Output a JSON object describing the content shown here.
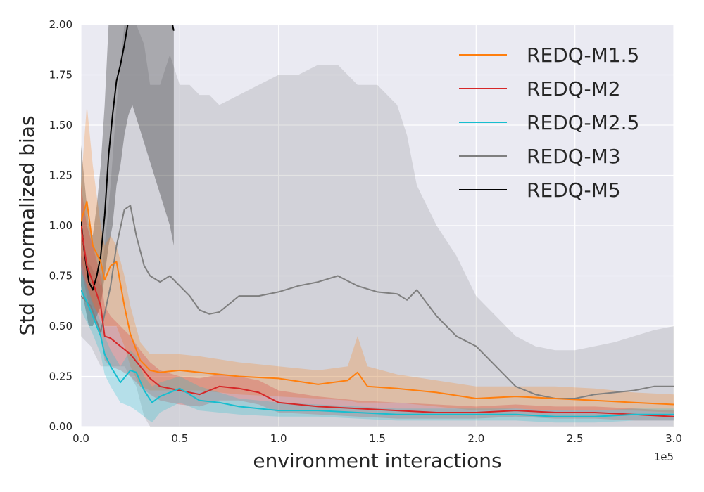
{
  "chart_data": {
    "type": "line",
    "title": "",
    "xlabel": "environment interactions",
    "ylabel": "Std of normalized bias",
    "x_offset_label": "1e5",
    "xlim": [
      0,
      3.0
    ],
    "ylim": [
      0,
      2.0
    ],
    "xticks": [
      "0.0",
      "0.5",
      "1.0",
      "1.5",
      "2.0",
      "2.5",
      "3.0"
    ],
    "yticks": [
      "0.00",
      "0.25",
      "0.50",
      "0.75",
      "1.00",
      "1.25",
      "1.50",
      "1.75",
      "2.00"
    ],
    "grid": true,
    "legend_position": "top-right",
    "series": [
      {
        "name": "REDQ-M1.5",
        "color": "#ff7f0e",
        "x": [
          0,
          0.03,
          0.06,
          0.1,
          0.12,
          0.15,
          0.18,
          0.22,
          0.25,
          0.3,
          0.35,
          0.4,
          0.5,
          0.6,
          0.8,
          1.0,
          1.2,
          1.35,
          1.4,
          1.45,
          1.6,
          1.8,
          2.0,
          2.2,
          2.4,
          2.6,
          2.8,
          3.0
        ],
        "values": [
          1.02,
          1.12,
          0.9,
          0.82,
          0.73,
          0.8,
          0.82,
          0.6,
          0.46,
          0.33,
          0.28,
          0.27,
          0.28,
          0.27,
          0.25,
          0.24,
          0.21,
          0.23,
          0.27,
          0.2,
          0.19,
          0.17,
          0.14,
          0.15,
          0.14,
          0.13,
          0.12,
          0.11
        ],
        "band_upper": [
          1.2,
          1.6,
          1.3,
          1.0,
          0.9,
          0.95,
          0.9,
          0.75,
          0.6,
          0.42,
          0.36,
          0.36,
          0.36,
          0.35,
          0.32,
          0.3,
          0.28,
          0.3,
          0.45,
          0.3,
          0.26,
          0.23,
          0.2,
          0.2,
          0.2,
          0.19,
          0.17,
          0.16
        ],
        "band_lower": [
          0.85,
          0.7,
          0.6,
          0.55,
          0.5,
          0.5,
          0.5,
          0.4,
          0.3,
          0.2,
          0.18,
          0.18,
          0.18,
          0.18,
          0.16,
          0.15,
          0.14,
          0.13,
          0.12,
          0.12,
          0.12,
          0.1,
          0.08,
          0.09,
          0.08,
          0.08,
          0.08,
          0.07
        ]
      },
      {
        "name": "REDQ-M2",
        "color": "#d62728",
        "x": [
          0,
          0.03,
          0.06,
          0.1,
          0.12,
          0.15,
          0.2,
          0.25,
          0.3,
          0.35,
          0.4,
          0.5,
          0.6,
          0.7,
          0.8,
          0.9,
          1.0,
          1.2,
          1.4,
          1.6,
          1.8,
          2.0,
          2.2,
          2.4,
          2.6,
          2.8,
          3.0
        ],
        "values": [
          1.0,
          0.8,
          0.72,
          0.6,
          0.45,
          0.44,
          0.4,
          0.36,
          0.3,
          0.24,
          0.2,
          0.18,
          0.16,
          0.2,
          0.19,
          0.17,
          0.12,
          0.1,
          0.09,
          0.08,
          0.07,
          0.07,
          0.08,
          0.07,
          0.07,
          0.06,
          0.05
        ],
        "band_upper": [
          1.2,
          1.0,
          0.9,
          0.75,
          0.6,
          0.55,
          0.5,
          0.45,
          0.38,
          0.32,
          0.28,
          0.25,
          0.24,
          0.26,
          0.25,
          0.23,
          0.18,
          0.15,
          0.13,
          0.12,
          0.11,
          0.1,
          0.11,
          0.1,
          0.1,
          0.09,
          0.08
        ],
        "band_lower": [
          0.8,
          0.65,
          0.55,
          0.45,
          0.33,
          0.3,
          0.28,
          0.25,
          0.2,
          0.16,
          0.13,
          0.11,
          0.1,
          0.13,
          0.13,
          0.11,
          0.07,
          0.06,
          0.05,
          0.04,
          0.04,
          0.04,
          0.05,
          0.04,
          0.04,
          0.03,
          0.03
        ]
      },
      {
        "name": "REDQ-M2.5",
        "color": "#17becf",
        "x": [
          0,
          0.03,
          0.06,
          0.1,
          0.12,
          0.15,
          0.2,
          0.25,
          0.28,
          0.32,
          0.36,
          0.4,
          0.5,
          0.6,
          0.7,
          0.8,
          1.0,
          1.2,
          1.4,
          1.6,
          1.8,
          2.0,
          2.2,
          2.4,
          2.6,
          2.8,
          3.0
        ],
        "values": [
          0.68,
          0.62,
          0.55,
          0.45,
          0.36,
          0.3,
          0.22,
          0.28,
          0.27,
          0.18,
          0.12,
          0.15,
          0.19,
          0.13,
          0.12,
          0.1,
          0.08,
          0.08,
          0.07,
          0.06,
          0.06,
          0.06,
          0.06,
          0.05,
          0.05,
          0.06,
          0.06
        ],
        "band_upper": [
          0.78,
          0.7,
          0.62,
          0.52,
          0.45,
          0.38,
          0.3,
          0.38,
          0.35,
          0.25,
          0.2,
          0.22,
          0.25,
          0.2,
          0.17,
          0.14,
          0.12,
          0.11,
          0.1,
          0.09,
          0.09,
          0.09,
          0.09,
          0.08,
          0.08,
          0.09,
          0.09
        ],
        "band_lower": [
          0.58,
          0.52,
          0.46,
          0.36,
          0.26,
          0.2,
          0.12,
          0.1,
          0.08,
          0.05,
          0.02,
          0.07,
          0.12,
          0.08,
          0.07,
          0.06,
          0.05,
          0.05,
          0.04,
          0.03,
          0.03,
          0.03,
          0.03,
          0.02,
          0.02,
          0.03,
          0.03
        ]
      },
      {
        "name": "REDQ-M3",
        "color": "#7f7f7f",
        "x": [
          0,
          0.05,
          0.1,
          0.15,
          0.18,
          0.22,
          0.25,
          0.28,
          0.32,
          0.35,
          0.4,
          0.45,
          0.5,
          0.55,
          0.6,
          0.65,
          0.7,
          0.8,
          0.9,
          1.0,
          1.1,
          1.2,
          1.3,
          1.4,
          1.5,
          1.6,
          1.65,
          1.7,
          1.8,
          1.9,
          2.0,
          2.1,
          2.2,
          2.3,
          2.4,
          2.5,
          2.6,
          2.7,
          2.8,
          2.9,
          3.0
        ],
        "values": [
          0.65,
          0.6,
          0.47,
          0.7,
          0.9,
          1.08,
          1.1,
          0.95,
          0.8,
          0.75,
          0.72,
          0.75,
          0.7,
          0.65,
          0.58,
          0.56,
          0.57,
          0.65,
          0.65,
          0.67,
          0.7,
          0.72,
          0.75,
          0.7,
          0.67,
          0.66,
          0.63,
          0.68,
          0.55,
          0.45,
          0.4,
          0.3,
          0.2,
          0.16,
          0.14,
          0.14,
          0.16,
          0.17,
          0.18,
          0.2,
          0.2
        ],
        "band_upper": [
          0.85,
          0.8,
          0.7,
          1.2,
          1.6,
          2.0,
          2.0,
          2.0,
          1.9,
          1.7,
          1.7,
          1.85,
          1.7,
          1.7,
          1.65,
          1.65,
          1.6,
          1.65,
          1.7,
          1.75,
          1.75,
          1.8,
          1.8,
          1.7,
          1.7,
          1.6,
          1.45,
          1.2,
          1.0,
          0.85,
          0.65,
          0.55,
          0.45,
          0.4,
          0.38,
          0.38,
          0.4,
          0.42,
          0.45,
          0.48,
          0.5
        ],
        "band_lower": [
          0.45,
          0.4,
          0.3,
          0.3,
          0.3,
          0.3,
          0.25,
          0.2,
          0.05,
          0.0,
          0.0,
          0.0,
          0.0,
          0.0,
          0.0,
          0.0,
          0.0,
          0.0,
          0.0,
          0.0,
          0.0,
          0.0,
          0.0,
          0.0,
          0.0,
          0.0,
          0.0,
          0.0,
          0.0,
          0.0,
          0.0,
          0.0,
          0.0,
          0.0,
          0.0,
          0.0,
          0.0,
          0.0,
          0.0,
          0.0,
          0.0
        ]
      },
      {
        "name": "REDQ-M5",
        "color": "#000000",
        "x": [
          0,
          0.02,
          0.04,
          0.06,
          0.08,
          0.1,
          0.12,
          0.14,
          0.16,
          0.18,
          0.2,
          0.22,
          0.24,
          0.26,
          0.45,
          0.47
        ],
        "values": [
          1.02,
          0.85,
          0.72,
          0.68,
          0.75,
          0.85,
          1.05,
          1.35,
          1.55,
          1.72,
          1.8,
          1.9,
          2.02,
          2.05,
          2.05,
          1.97
        ],
        "band_upper": [
          1.4,
          1.2,
          1.0,
          0.95,
          1.1,
          1.3,
          1.6,
          2.0,
          2.0,
          2.0,
          2.0,
          2.0,
          2.0,
          2.0,
          2.0,
          2.0
        ],
        "band_lower": [
          0.7,
          0.6,
          0.5,
          0.5,
          0.55,
          0.6,
          0.75,
          0.9,
          1.0,
          1.2,
          1.3,
          1.45,
          1.55,
          1.6,
          1.0,
          0.9
        ]
      }
    ]
  }
}
